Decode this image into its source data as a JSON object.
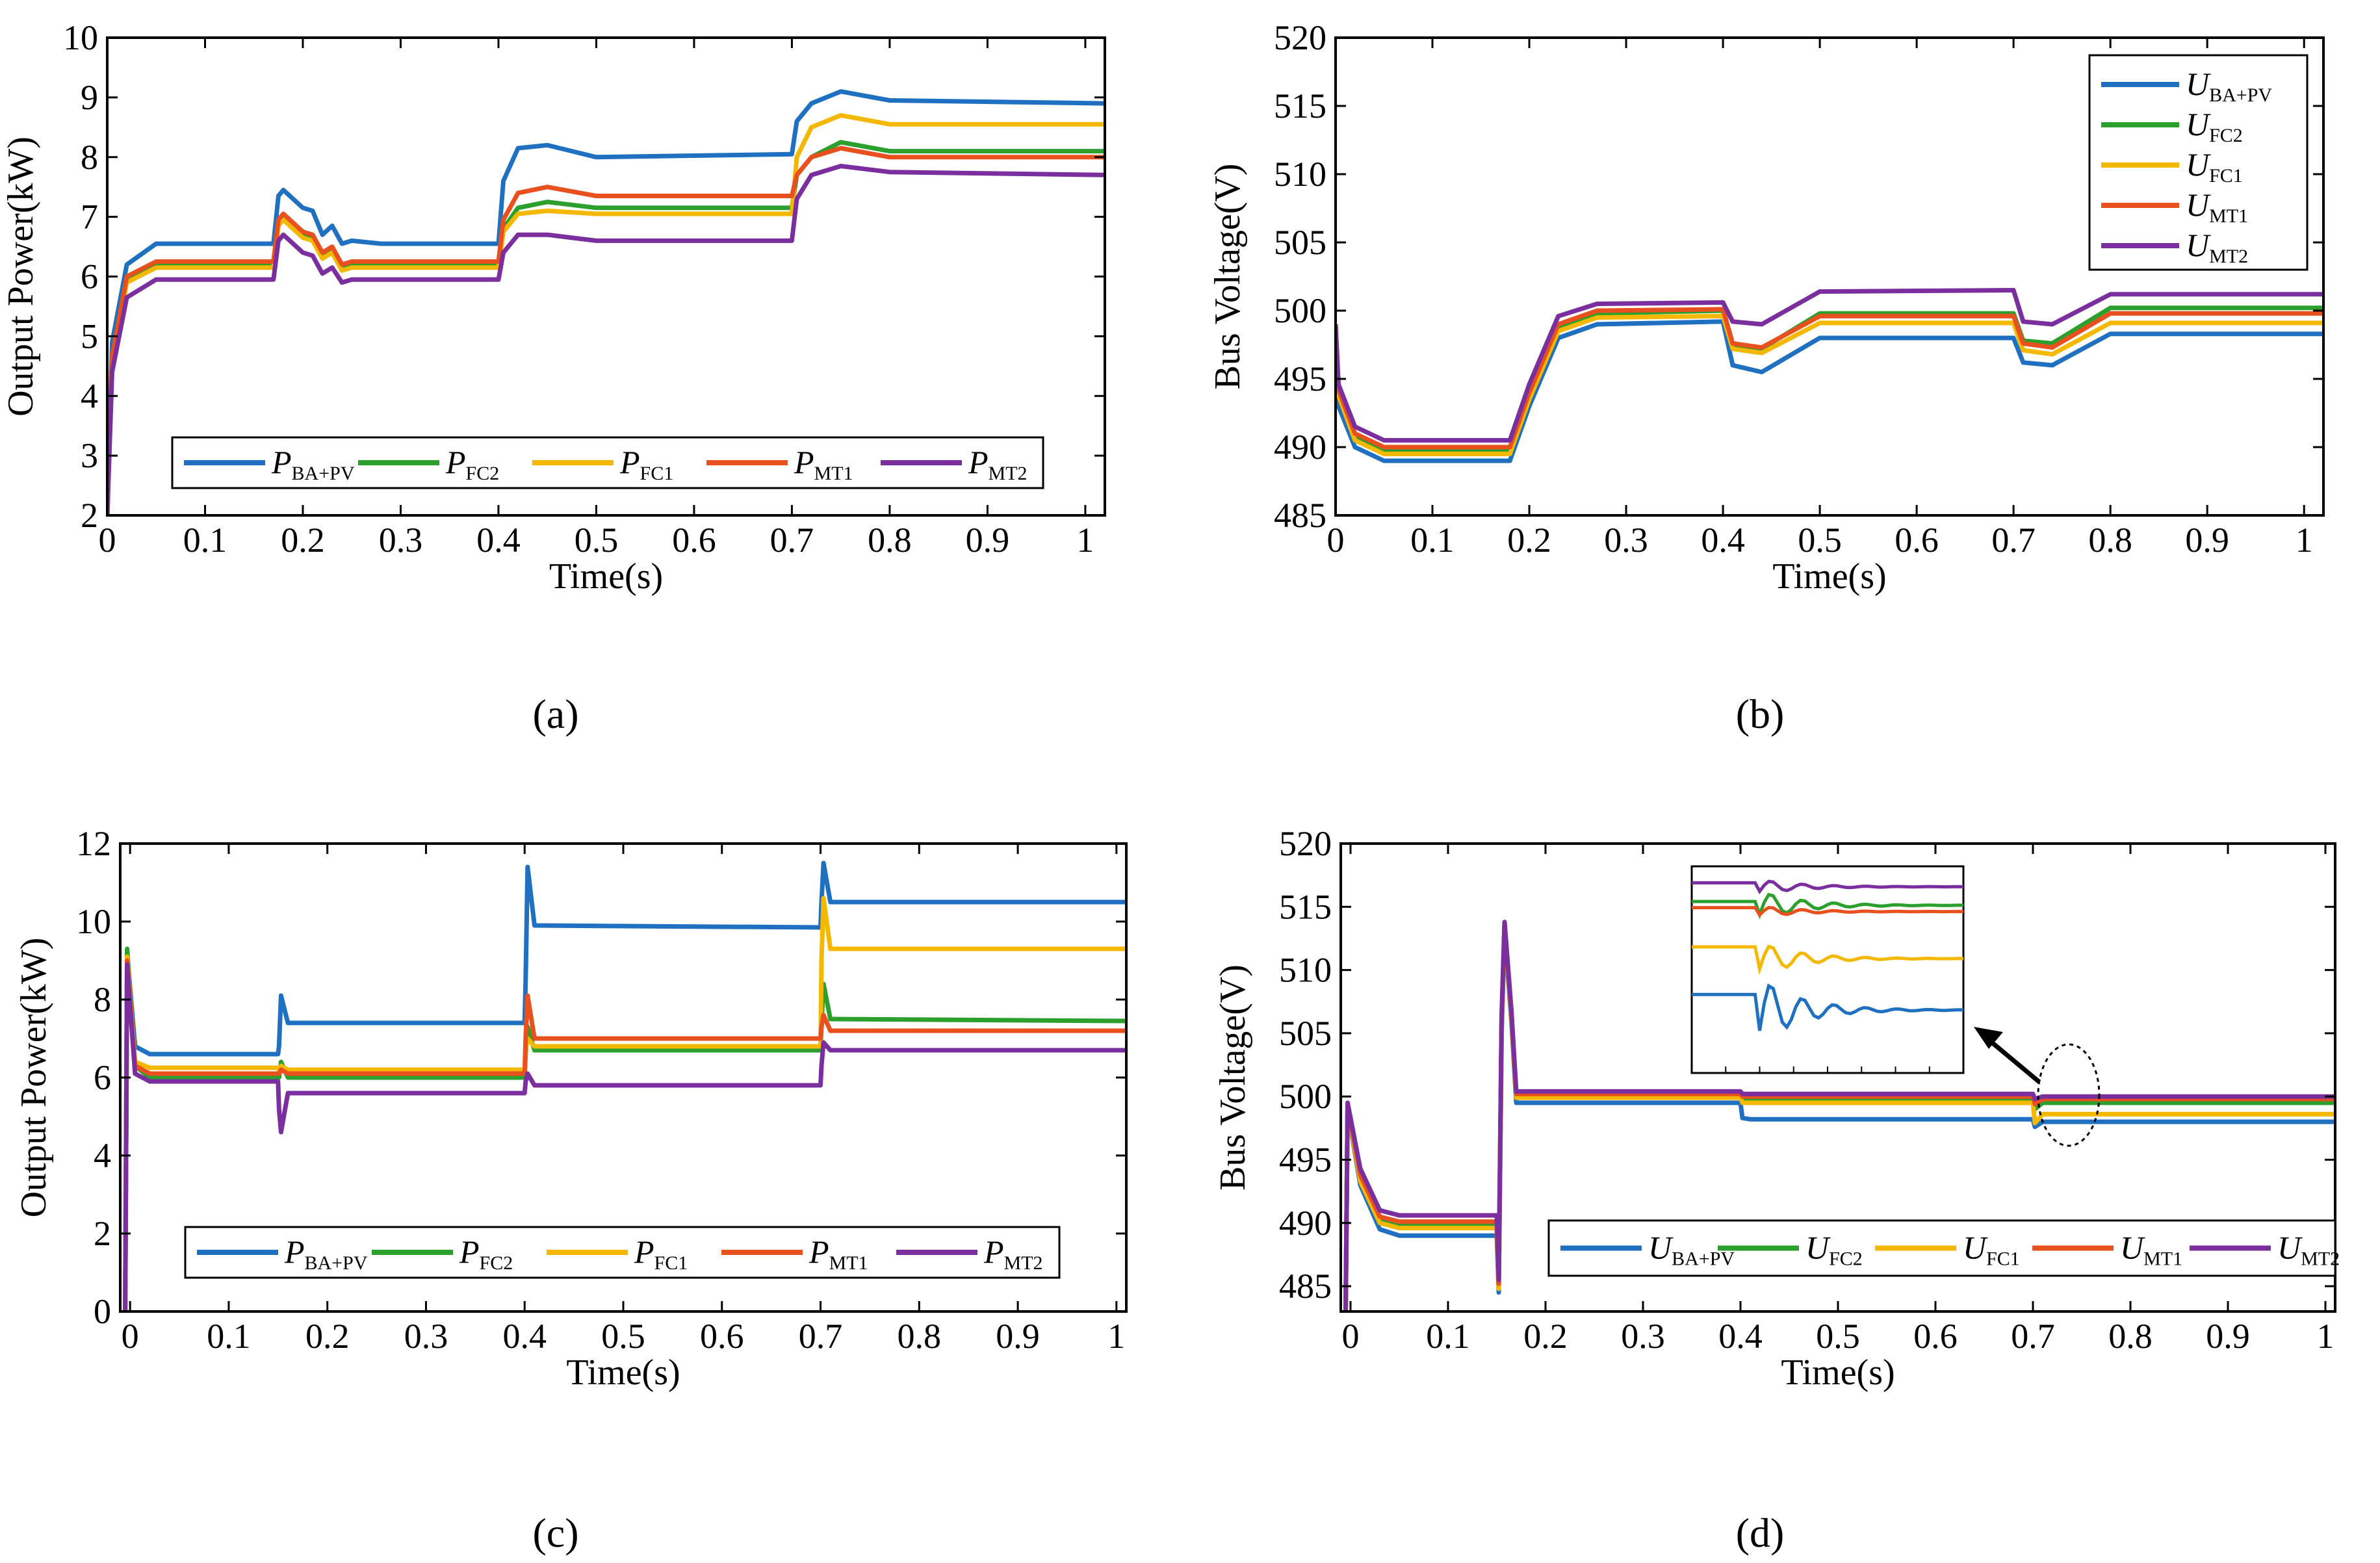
{
  "panels": [
    {
      "label": "(a)"
    },
    {
      "label": "(b)"
    },
    {
      "label": "(c)"
    },
    {
      "label": "(d)"
    }
  ],
  "colors": {
    "series_BA_PV": "#1f70c1",
    "series_FC2": "#2ca02c",
    "series_FC1": "#f5b800",
    "series_MT1": "#e8501e",
    "series_MT2": "#7b2f9e"
  },
  "chart_data": [
    {
      "type": "line",
      "xlabel": "Time(s)",
      "ylabel": "Output Power(kW)",
      "xlim": [
        0,
        1.02
      ],
      "ylim": [
        2,
        10
      ],
      "xticks": [
        "0",
        "0.1",
        "0.2",
        "0.3",
        "0.4",
        "0.5",
        "0.6",
        "0.7",
        "0.8",
        "0.9",
        "1"
      ],
      "yticks": [
        "2",
        "3",
        "4",
        "5",
        "6",
        "7",
        "8",
        "9",
        "10"
      ],
      "legend": "bottom",
      "legend_entries": [
        {
          "main": "P",
          "sub": "BA+PV"
        },
        {
          "main": "P",
          "sub": "FC2"
        },
        {
          "main": "P",
          "sub": "FC1"
        },
        {
          "main": "P",
          "sub": "MT1"
        },
        {
          "main": "P",
          "sub": "MT2"
        }
      ],
      "series": [
        {
          "x": [
            0,
            0.005,
            0.02,
            0.05,
            0.17,
            0.175,
            0.18,
            0.2,
            0.21,
            0.22,
            0.23,
            0.24,
            0.25,
            0.28,
            0.4,
            0.405,
            0.42,
            0.45,
            0.5,
            0.7,
            0.705,
            0.72,
            0.75,
            0.8,
            1.02
          ],
          "y": [
            2,
            4.9,
            6.2,
            6.55,
            6.55,
            7.35,
            7.45,
            7.15,
            7.1,
            6.7,
            6.85,
            6.55,
            6.6,
            6.55,
            6.55,
            7.6,
            8.15,
            8.2,
            8.0,
            8.05,
            8.6,
            8.9,
            9.1,
            8.95,
            8.9
          ]
        },
        {
          "x": [
            0,
            0.005,
            0.02,
            0.05,
            0.17,
            0.175,
            0.18,
            0.2,
            0.21,
            0.22,
            0.23,
            0.24,
            0.25,
            0.28,
            0.4,
            0.405,
            0.42,
            0.45,
            0.5,
            0.7,
            0.705,
            0.72,
            0.75,
            0.8,
            1.02
          ],
          "y": [
            2,
            4.6,
            5.95,
            6.2,
            6.2,
            6.9,
            7.0,
            6.7,
            6.65,
            6.35,
            6.45,
            6.15,
            6.2,
            6.2,
            6.2,
            6.8,
            7.15,
            7.25,
            7.15,
            7.15,
            7.7,
            8.0,
            8.25,
            8.1,
            8.1
          ]
        },
        {
          "x": [
            0,
            0.005,
            0.02,
            0.05,
            0.17,
            0.175,
            0.18,
            0.2,
            0.21,
            0.22,
            0.23,
            0.24,
            0.25,
            0.28,
            0.4,
            0.405,
            0.42,
            0.45,
            0.5,
            0.7,
            0.705,
            0.72,
            0.75,
            0.8,
            1.02
          ],
          "y": [
            2,
            4.55,
            5.9,
            6.15,
            6.15,
            6.85,
            6.95,
            6.65,
            6.6,
            6.3,
            6.4,
            6.1,
            6.15,
            6.15,
            6.15,
            6.75,
            7.05,
            7.1,
            7.05,
            7.05,
            8.0,
            8.5,
            8.7,
            8.55,
            8.55
          ]
        },
        {
          "x": [
            0,
            0.005,
            0.02,
            0.05,
            0.17,
            0.175,
            0.18,
            0.2,
            0.21,
            0.22,
            0.23,
            0.24,
            0.25,
            0.28,
            0.4,
            0.405,
            0.42,
            0.45,
            0.5,
            0.7,
            0.705,
            0.72,
            0.75,
            0.8,
            1.02
          ],
          "y": [
            2,
            4.65,
            6.0,
            6.25,
            6.25,
            6.95,
            7.05,
            6.75,
            6.7,
            6.4,
            6.5,
            6.2,
            6.25,
            6.25,
            6.25,
            6.95,
            7.4,
            7.5,
            7.35,
            7.35,
            7.7,
            8.0,
            8.15,
            8.0,
            8.0
          ]
        },
        {
          "x": [
            0,
            0.005,
            0.02,
            0.05,
            0.17,
            0.175,
            0.18,
            0.2,
            0.21,
            0.22,
            0.23,
            0.24,
            0.25,
            0.28,
            0.4,
            0.405,
            0.42,
            0.45,
            0.5,
            0.7,
            0.705,
            0.72,
            0.75,
            0.8,
            1.02
          ],
          "y": [
            2,
            4.4,
            5.65,
            5.95,
            5.95,
            6.6,
            6.7,
            6.4,
            6.35,
            6.05,
            6.15,
            5.9,
            5.95,
            5.95,
            5.95,
            6.4,
            6.7,
            6.7,
            6.6,
            6.6,
            7.3,
            7.7,
            7.85,
            7.75,
            7.7
          ]
        }
      ]
    },
    {
      "type": "line",
      "xlabel": "Time(s)",
      "ylabel": "Bus Voltage(V)",
      "xlim": [
        0,
        1.02
      ],
      "ylim": [
        485,
        520
      ],
      "xticks": [
        "0",
        "0.1",
        "0.2",
        "0.3",
        "0.4",
        "0.5",
        "0.6",
        "0.7",
        "0.8",
        "0.9",
        "1"
      ],
      "yticks": [
        "485",
        "490",
        "495",
        "500",
        "505",
        "510",
        "515",
        "520"
      ],
      "legend": "top-right",
      "legend_entries": [
        {
          "main": "U",
          "sub": "BA+PV"
        },
        {
          "main": "U",
          "sub": "FC2"
        },
        {
          "main": "U",
          "sub": "FC1"
        },
        {
          "main": "U",
          "sub": "MT1"
        },
        {
          "main": "U",
          "sub": "MT2"
        }
      ],
      "series": [
        {
          "x": [
            0,
            0.003,
            0.02,
            0.05,
            0.18,
            0.2,
            0.23,
            0.27,
            0.4,
            0.41,
            0.44,
            0.5,
            0.7,
            0.71,
            0.74,
            0.8,
            1.02
          ],
          "y": [
            499,
            493,
            490,
            489,
            489,
            493,
            498,
            499,
            499.2,
            496,
            495.5,
            498,
            498,
            496.2,
            496,
            498.3,
            498.3
          ]
        },
        {
          "x": [
            0,
            0.003,
            0.02,
            0.05,
            0.18,
            0.2,
            0.23,
            0.27,
            0.4,
            0.41,
            0.44,
            0.5,
            0.7,
            0.71,
            0.74,
            0.8,
            1.02
          ],
          "y": [
            499,
            494,
            490.8,
            489.7,
            489.7,
            493.8,
            498.8,
            499.8,
            500,
            497.5,
            497.2,
            499.8,
            499.8,
            497.8,
            497.6,
            500.2,
            500.2
          ]
        },
        {
          "x": [
            0,
            0.003,
            0.02,
            0.05,
            0.18,
            0.2,
            0.23,
            0.27,
            0.4,
            0.41,
            0.44,
            0.5,
            0.7,
            0.71,
            0.74,
            0.8,
            1.02
          ],
          "y": [
            499,
            493.8,
            490.5,
            489.5,
            489.5,
            493.5,
            498.5,
            499.5,
            499.6,
            497.2,
            496.9,
            499.1,
            499.1,
            497.1,
            496.8,
            499.1,
            499.1
          ]
        },
        {
          "x": [
            0,
            0.003,
            0.02,
            0.05,
            0.18,
            0.2,
            0.23,
            0.27,
            0.4,
            0.41,
            0.44,
            0.5,
            0.7,
            0.71,
            0.74,
            0.8,
            1.02
          ],
          "y": [
            499,
            494.2,
            491,
            490,
            490,
            494,
            499,
            500,
            500.1,
            497.6,
            497.3,
            499.6,
            499.6,
            497.6,
            497.3,
            499.8,
            499.8
          ]
        },
        {
          "x": [
            0,
            0.003,
            0.02,
            0.05,
            0.18,
            0.2,
            0.23,
            0.27,
            0.4,
            0.41,
            0.44,
            0.5,
            0.7,
            0.71,
            0.74,
            0.8,
            1.02
          ],
          "y": [
            499,
            494.6,
            491.5,
            490.5,
            490.5,
            494.6,
            499.6,
            500.5,
            500.6,
            499.2,
            499,
            501.4,
            501.5,
            499.2,
            499,
            501.2,
            501.2
          ]
        }
      ]
    },
    {
      "type": "line",
      "xlabel": "Time(s)",
      "ylabel": "Output Power(kW)",
      "xlim": [
        -0.01,
        1.01
      ],
      "ylim": [
        0,
        12
      ],
      "xticks": [
        "0",
        "0.1",
        "0.2",
        "0.3",
        "0.4",
        "0.5",
        "0.6",
        "0.7",
        "0.8",
        "0.9",
        "1"
      ],
      "yticks": [
        "0",
        "2",
        "4",
        "6",
        "8",
        "10",
        "12"
      ],
      "legend": "bottom",
      "legend_entries": [
        {
          "main": "P",
          "sub": "BA+PV"
        },
        {
          "main": "P",
          "sub": "FC2"
        },
        {
          "main": "P",
          "sub": "FC1"
        },
        {
          "main": "P",
          "sub": "MT1"
        },
        {
          "main": "P",
          "sub": "MT2"
        }
      ],
      "series": [
        {
          "x": [
            -0.005,
            -0.003,
            0.005,
            0.02,
            0.15,
            0.151,
            0.153,
            0.16,
            0.4,
            0.401,
            0.403,
            0.41,
            0.7,
            0.701,
            0.703,
            0.71,
            1.01
          ],
          "y": [
            0,
            9.2,
            6.8,
            6.6,
            6.6,
            6.8,
            8.1,
            7.4,
            7.4,
            8.5,
            11.4,
            9.9,
            9.85,
            10.5,
            11.5,
            10.5,
            10.5
          ]
        },
        {
          "x": [
            -0.005,
            -0.003,
            0.005,
            0.02,
            0.15,
            0.151,
            0.153,
            0.16,
            0.4,
            0.401,
            0.403,
            0.41,
            0.7,
            0.701,
            0.703,
            0.71,
            1.01
          ],
          "y": [
            0,
            9.3,
            6.3,
            6.0,
            6.0,
            6.0,
            6.4,
            6.0,
            6.0,
            6.6,
            7.3,
            6.7,
            6.7,
            7.4,
            8.4,
            7.5,
            7.45
          ]
        },
        {
          "x": [
            -0.005,
            -0.003,
            0.005,
            0.02,
            0.15,
            0.151,
            0.153,
            0.16,
            0.4,
            0.401,
            0.403,
            0.41,
            0.7,
            0.701,
            0.703,
            0.71,
            1.01
          ],
          "y": [
            0,
            9.1,
            6.4,
            6.25,
            6.25,
            6.2,
            6.3,
            6.2,
            6.2,
            6.7,
            7.0,
            6.8,
            6.8,
            9.0,
            10.6,
            9.3,
            9.3
          ]
        },
        {
          "x": [
            -0.005,
            -0.003,
            0.005,
            0.02,
            0.15,
            0.151,
            0.153,
            0.16,
            0.4,
            0.401,
            0.403,
            0.41,
            0.7,
            0.701,
            0.703,
            0.71,
            1.01
          ],
          "y": [
            0,
            9.0,
            6.3,
            6.1,
            6.1,
            6.1,
            6.2,
            6.1,
            6.1,
            7.0,
            8.1,
            7.0,
            7.0,
            7.3,
            7.6,
            7.2,
            7.2
          ]
        },
        {
          "x": [
            -0.005,
            -0.003,
            0.005,
            0.02,
            0.15,
            0.151,
            0.153,
            0.16,
            0.4,
            0.401,
            0.403,
            0.41,
            0.7,
            0.701,
            0.703,
            0.71,
            1.01
          ],
          "y": [
            0,
            8.9,
            6.1,
            5.9,
            5.9,
            5.2,
            4.6,
            5.6,
            5.6,
            5.9,
            6.1,
            5.8,
            5.8,
            6.3,
            6.9,
            6.7,
            6.7
          ]
        }
      ]
    },
    {
      "type": "line",
      "xlabel": "Time(s)",
      "ylabel": "Bus Voltage(V)",
      "xlim": [
        -0.01,
        1.01
      ],
      "ylim": [
        483,
        520
      ],
      "xticks": [
        "0",
        "0.1",
        "0.2",
        "0.3",
        "0.4",
        "0.5",
        "0.6",
        "0.7",
        "0.8",
        "0.9",
        "1"
      ],
      "yticks": [
        "485",
        "490",
        "495",
        "500",
        "505",
        "510",
        "515",
        "520"
      ],
      "legend": "bottom",
      "legend_entries": [
        {
          "main": "U",
          "sub": "BA+PV"
        },
        {
          "main": "U",
          "sub": "FC2"
        },
        {
          "main": "U",
          "sub": "FC1"
        },
        {
          "main": "U",
          "sub": "MT1"
        },
        {
          "main": "U",
          "sub": "MT2"
        }
      ],
      "series": [
        {
          "x": [
            -0.005,
            -0.003,
            0.01,
            0.03,
            0.05,
            0.15,
            0.152,
            0.155,
            0.158,
            0.165,
            0.17,
            0.4,
            0.402,
            0.41,
            0.7,
            0.702,
            0.71,
            1.01
          ],
          "y": [
            483,
            499,
            493,
            489.5,
            489,
            489,
            484.5,
            505,
            513,
            506,
            499.5,
            499.5,
            498.3,
            498.2,
            498.2,
            497.6,
            498,
            498
          ]
        },
        {
          "x": [
            -0.005,
            -0.003,
            0.01,
            0.03,
            0.05,
            0.15,
            0.152,
            0.155,
            0.158,
            0.165,
            0.17,
            0.4,
            0.402,
            0.41,
            0.7,
            0.702,
            0.71,
            1.01
          ],
          "y": [
            483,
            499.2,
            493.5,
            490.2,
            489.8,
            489.8,
            485,
            506,
            513.5,
            506.5,
            500.1,
            500.1,
            499.8,
            499.8,
            499.8,
            499,
            499.5,
            499.5
          ]
        },
        {
          "x": [
            -0.005,
            -0.003,
            0.01,
            0.03,
            0.05,
            0.15,
            0.152,
            0.155,
            0.158,
            0.165,
            0.17,
            0.4,
            0.402,
            0.41,
            0.7,
            0.702,
            0.71,
            1.01
          ],
          "y": [
            483,
            499.1,
            493.3,
            490,
            489.6,
            489.6,
            484.8,
            505.8,
            513.3,
            506.3,
            499.9,
            499.9,
            499.5,
            499.5,
            499.5,
            497.9,
            498.6,
            498.6
          ]
        },
        {
          "x": [
            -0.005,
            -0.003,
            0.01,
            0.03,
            0.05,
            0.15,
            0.152,
            0.155,
            0.158,
            0.165,
            0.17,
            0.4,
            0.402,
            0.41,
            0.7,
            0.702,
            0.71,
            1.01
          ],
          "y": [
            483,
            499.3,
            493.8,
            490.5,
            490.1,
            490.1,
            485.2,
            506.2,
            513.6,
            506.6,
            500.2,
            500.2,
            500,
            500,
            500,
            499.4,
            499.8,
            499.8
          ]
        },
        {
          "x": [
            -0.005,
            -0.003,
            0.01,
            0.03,
            0.05,
            0.15,
            0.152,
            0.155,
            0.158,
            0.165,
            0.17,
            0.4,
            0.402,
            0.41,
            0.7,
            0.702,
            0.71,
            1.01
          ],
          "y": [
            483,
            499.5,
            494.3,
            491,
            490.6,
            490.6,
            485.5,
            506.4,
            513.8,
            506.8,
            500.4,
            500.4,
            500.2,
            500.2,
            500.2,
            499.8,
            500,
            500
          ]
        }
      ]
    }
  ]
}
